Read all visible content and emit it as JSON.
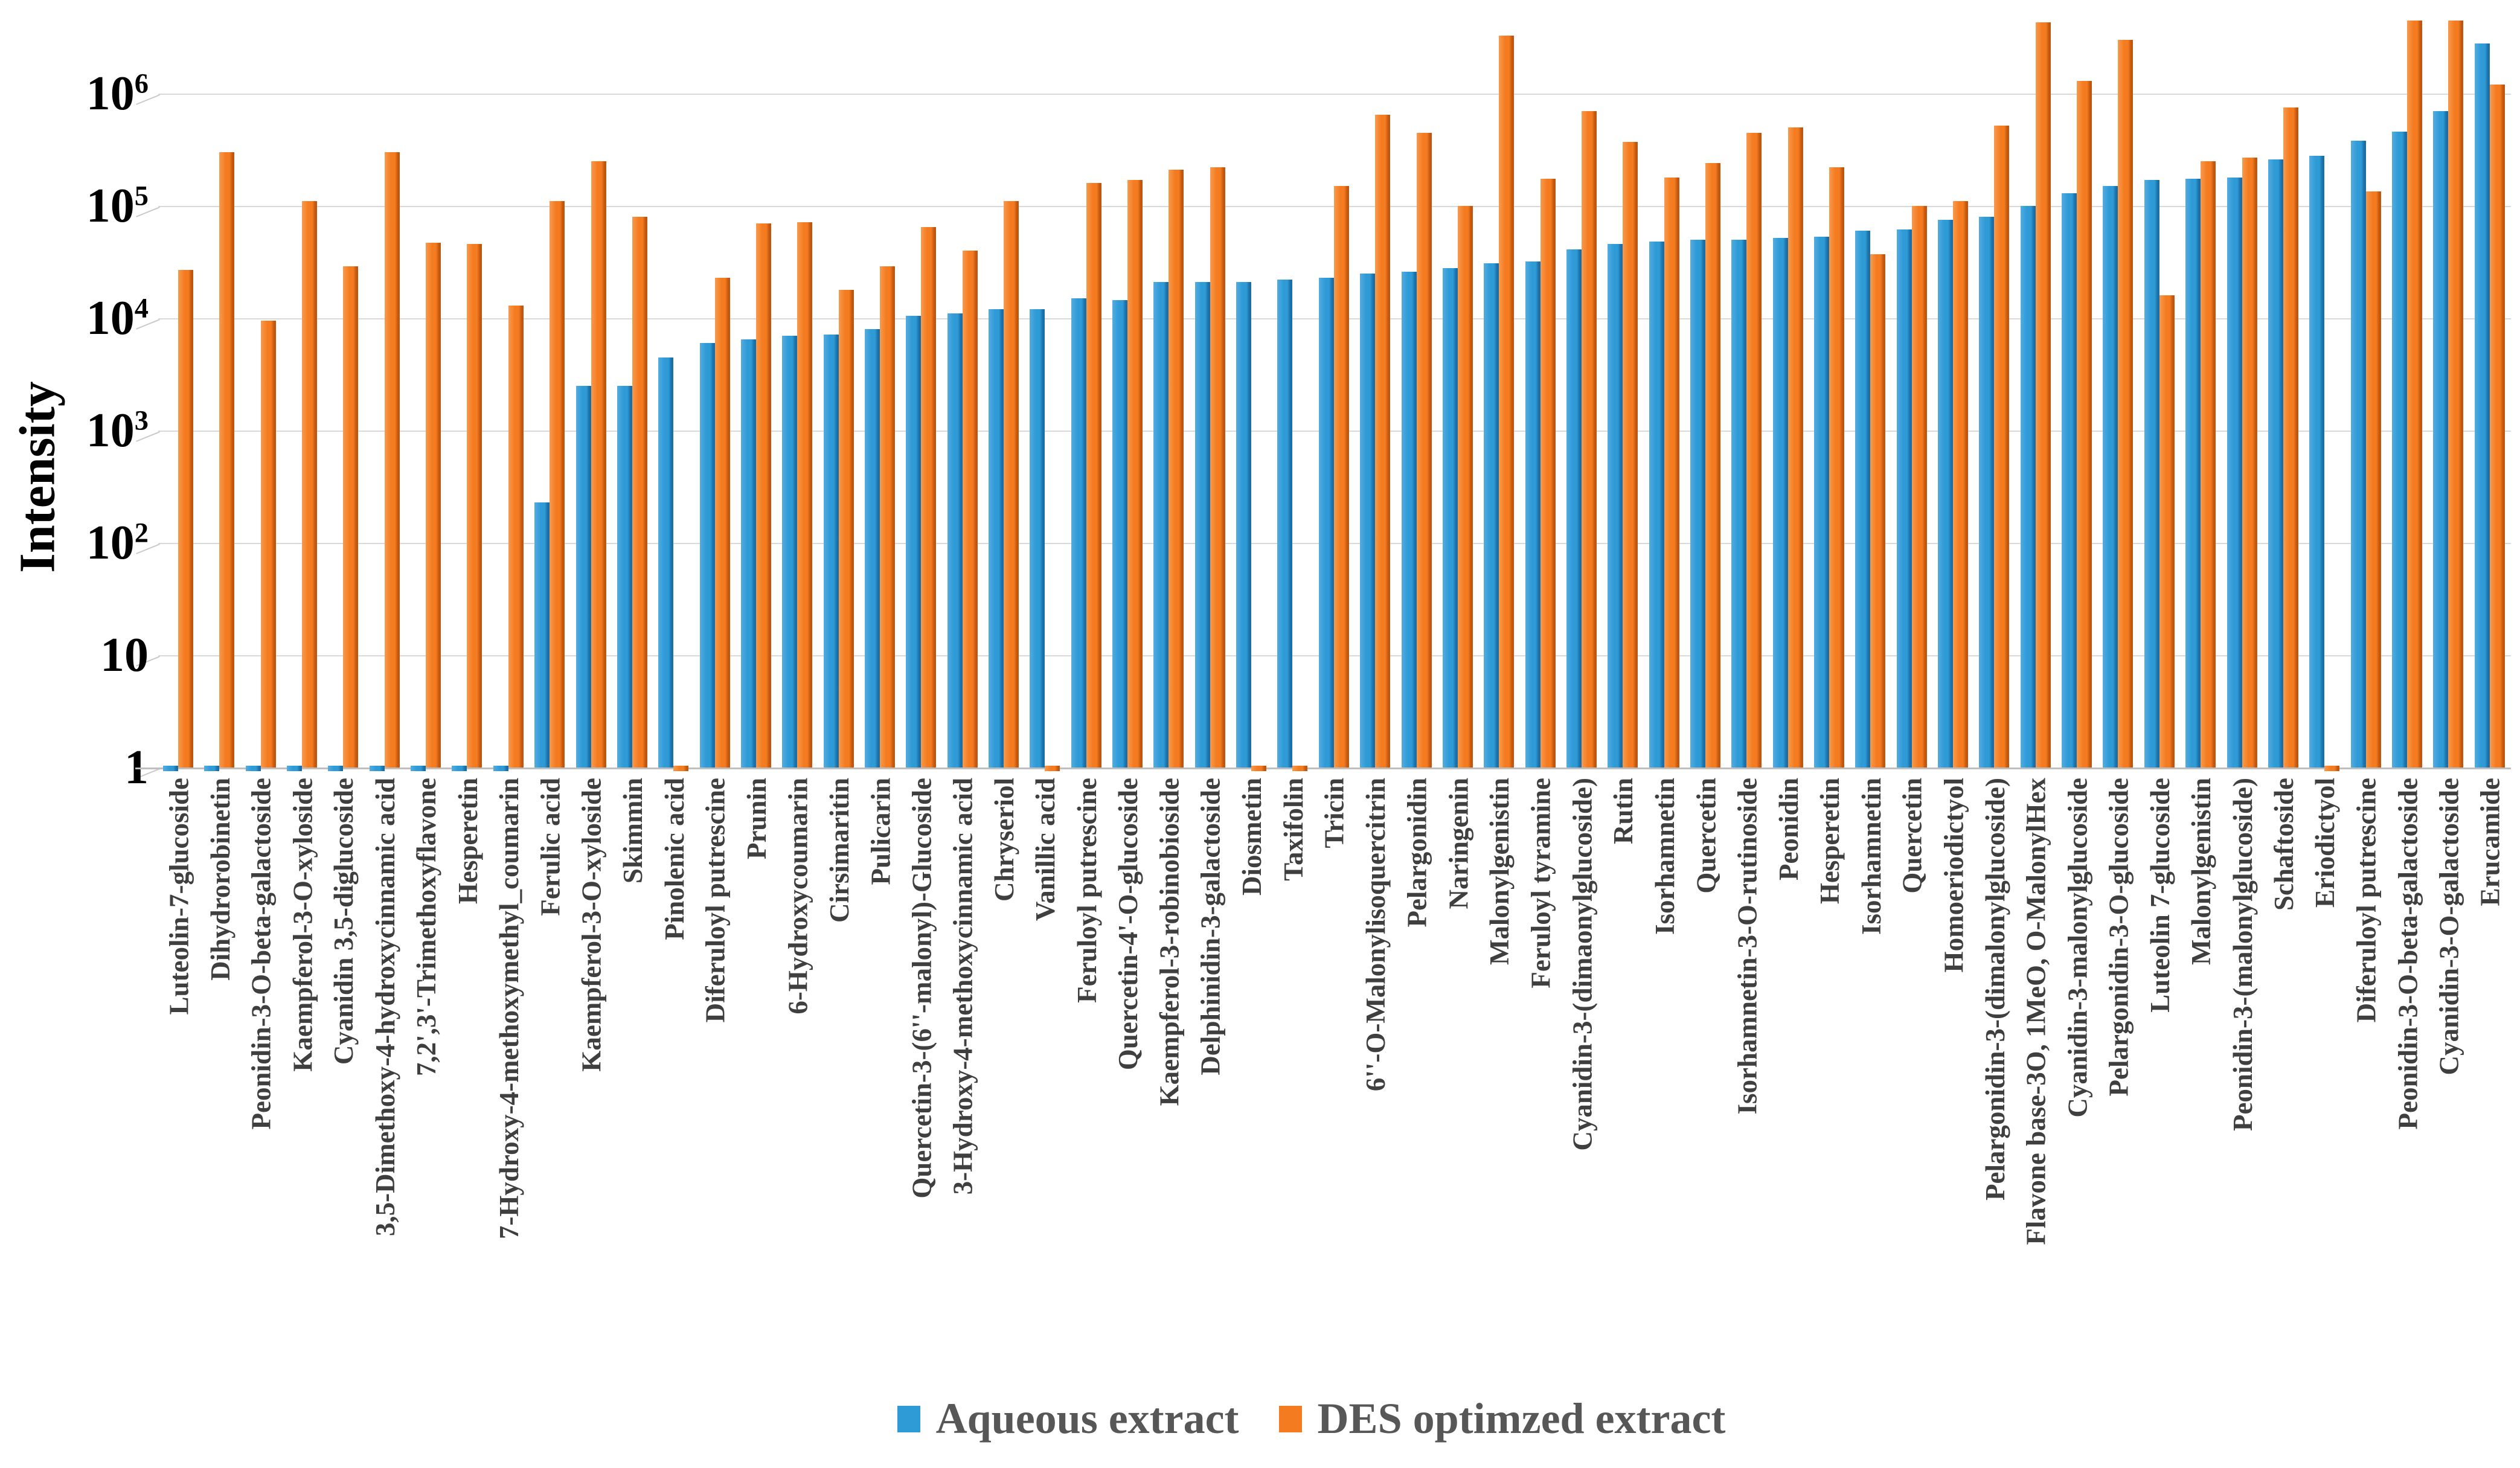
{
  "chart_data": {
    "type": "bar",
    "title": "",
    "xlabel": "",
    "ylabel": "Intensity",
    "yscale": "log",
    "ylim": [
      1,
      6800000
    ],
    "ytick_exponents": [
      0,
      1,
      2,
      3,
      4,
      5,
      6
    ],
    "ytick_labels": [
      "1",
      "10",
      "10^2",
      "10^3",
      "10^4",
      "10^5",
      "10^6"
    ],
    "grid": "horizontal",
    "legend_position": "bottom",
    "categories": [
      "Luteolin-7-glucoside",
      "Dihydrorobinetin",
      "Peonidin-3-O-beta-galactoside",
      "Kaempferol-3-O-xyloside",
      "Cyanidin 3,5-diglucoside",
      "3,5-Dimethoxy-4-hydroxycinnamic acid",
      "7,2',3'-Trimethoxyflavone",
      "Hesperetin",
      "7-Hydroxy-4-methoxymethyl_coumarin",
      "Ferulic acid",
      "Kaempferol-3-O-xyloside",
      "Skimmin",
      "Pinolenic acid",
      "Diferuloyl putrescine",
      "Prunin",
      "6-Hydroxycoumarin",
      "Cirsimaritin",
      "Pulicarin",
      "Quercetin-3-(6''-malonyl)-Glucoside",
      "3-Hydroxy-4-methoxycinnamic acid",
      "Chryseriol",
      "Vanillic acid",
      "Feruloyl putrescine",
      "Quercetin-4'-O-glucoside",
      "Kaempferol-3-robinobioside",
      "Delphinidin-3-galactoside",
      "Diosmetin",
      "Taxifolin",
      "Tricin",
      "6''-O-Malonylisoquercitrin",
      "Pelargonidin",
      "Naringenin",
      "Malonylgenistin",
      "Feruloyl tyramine",
      "Cyanidin-3-(dimaonylglucoside)",
      "Rutin",
      "Isorhamnetin",
      "Quercetin",
      "Isorhamnetin-3-O-rutinoside",
      "Peonidin",
      "Hesperetin",
      "Isorhamnetin",
      "Quercetin",
      "Homoeriodictyol",
      "Pelargonidin-3-(dimalonylglucoside)",
      "Flavone base-3O, 1MeO, O-MalonylHex",
      "Cyanidin-3-malonylglucoside",
      "Pelargonidin-3-O-glucoside",
      "Luteolin 7-glucoside",
      "Malonylgenistin",
      "Peonidin-3-(malonylglucoside)",
      "Schaftoside",
      "Eriodictyol",
      "Diferuloyl putrescine",
      "Peonidin-3-O-beta-galactoside",
      "Cyanidin-3-O-galactoside",
      "Erucamide"
    ],
    "series": [
      {
        "name": "Aqueous extract",
        "color": "#2E9AD6",
        "color_light": "#54ACE0",
        "color_dark": "#1C6FA6",
        "values": [
          1,
          1,
          1,
          1,
          1,
          1,
          1,
          1,
          1,
          230,
          2500,
          2500,
          4500,
          6000,
          6500,
          7000,
          7200,
          8000,
          10500,
          11000,
          12000,
          12000,
          15000,
          14500,
          21000,
          21000,
          21000,
          22000,
          23000,
          25000,
          26000,
          28000,
          31000,
          32000,
          41000,
          46000,
          48000,
          50000,
          50000,
          52000,
          53000,
          60000,
          62000,
          75000,
          80000,
          100000,
          130000,
          150000,
          170000,
          175000,
          180000,
          260000,
          280000,
          380000,
          460000,
          700000,
          2800000
        ]
      },
      {
        "name": "DES optimzed extract",
        "color": "#F47B20",
        "color_light": "#F89A4D",
        "color_dark": "#C05710",
        "values": [
          27000,
          300000,
          9500,
          110000,
          29000,
          300000,
          47000,
          46000,
          13000,
          110000,
          250000,
          80000,
          1,
          23000,
          70000,
          72000,
          18000,
          29000,
          65000,
          40000,
          110000,
          1,
          160000,
          170000,
          210000,
          220000,
          1,
          1,
          150000,
          650000,
          450000,
          100000,
          3300000,
          175000,
          700000,
          370000,
          180000,
          240000,
          450000,
          500000,
          220000,
          37000,
          100000,
          110000,
          520000,
          4300000,
          1300000,
          3000000,
          16000,
          250000,
          270000,
          750000,
          1,
          135000,
          4500000,
          4500000,
          1200000
        ]
      }
    ]
  }
}
